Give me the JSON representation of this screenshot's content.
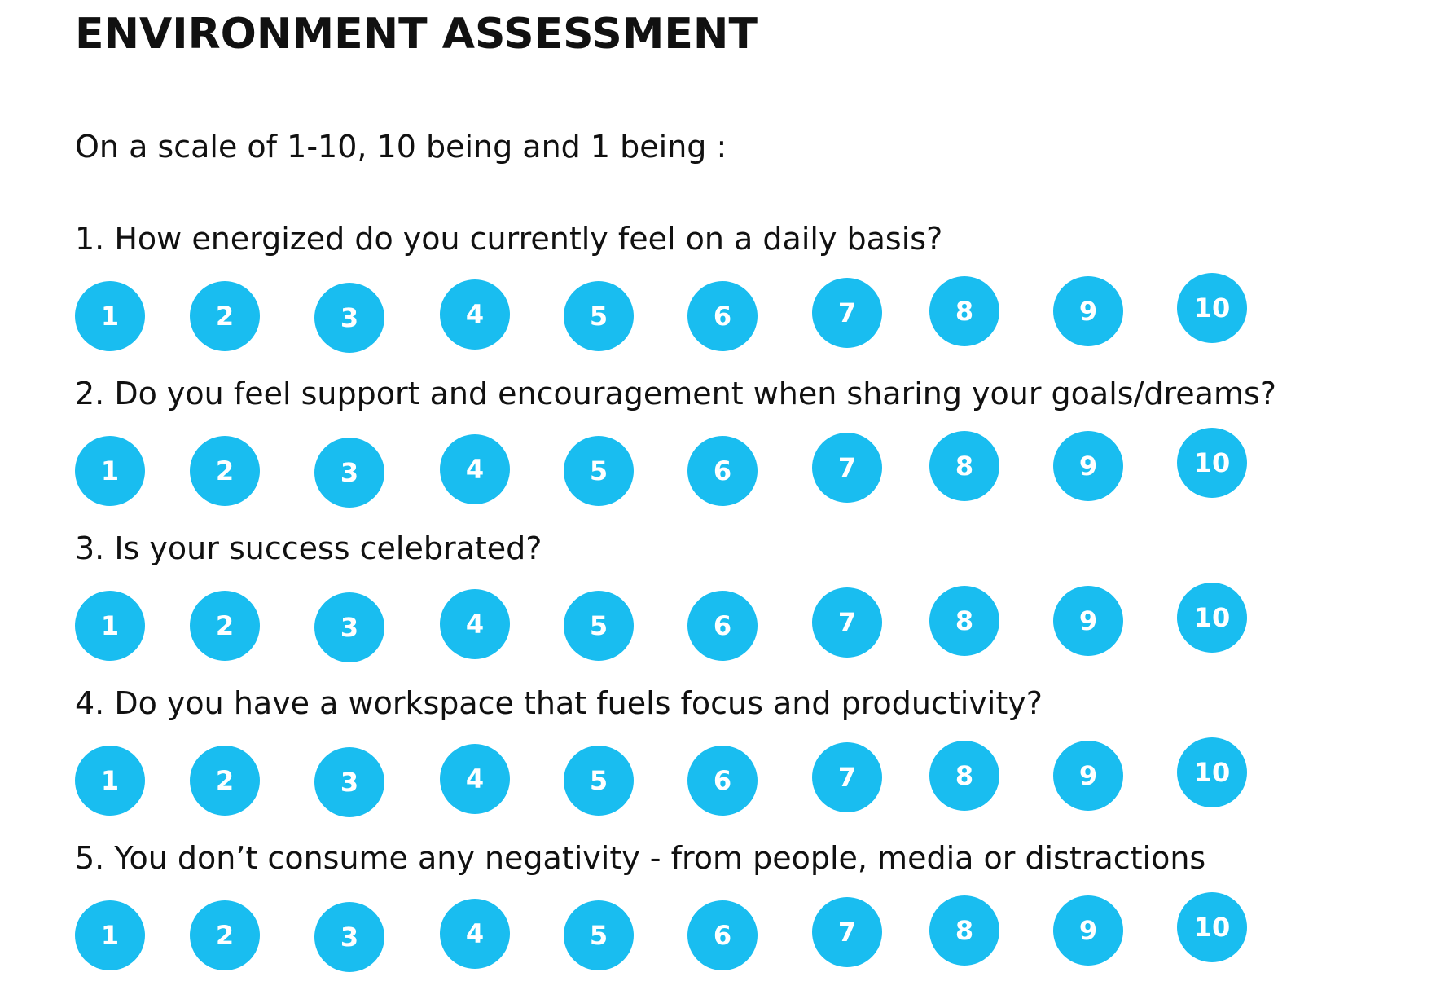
{
  "title": "ENVIRONMENT ASSESSMENT",
  "intro": "On a scale of 1-10, 10 being and 1 being :",
  "accent_color": "#19bdf0",
  "scale_options": [
    "1",
    "2",
    "3",
    "4",
    "5",
    "6",
    "7",
    "8",
    "9",
    "10"
  ],
  "questions": [
    {
      "text": "1. How energized do you currently feel on a daily basis?"
    },
    {
      "text": "2. Do you feel support and encouragement when sharing your goals/dreams?"
    },
    {
      "text": "3. Is your success celebrated?"
    },
    {
      "text": "4. Do you have a workspace that fuels focus and productivity?"
    },
    {
      "text": "5. You don’t consume any negativity - from people, media or distractions"
    }
  ]
}
